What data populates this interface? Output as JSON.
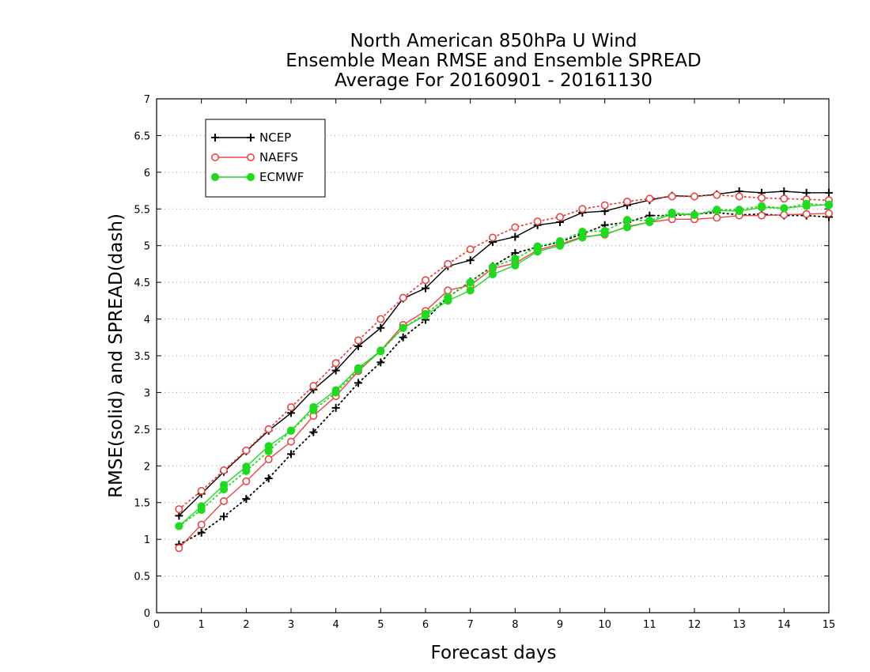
{
  "chart_data": {
    "type": "line",
    "title": [
      "North American 850hPa U Wind",
      "Ensemble Mean RMSE and Ensemble SPREAD",
      "Average For 20160901 - 20161130"
    ],
    "xlabel": "Forecast days",
    "ylabel": "RMSE(solid) and SPREAD(dash)",
    "xlim": [
      0,
      15
    ],
    "ylim": [
      0,
      7
    ],
    "xticks": [
      "0",
      "1",
      "2",
      "3",
      "4",
      "5",
      "6",
      "7",
      "8",
      "9",
      "10",
      "11",
      "12",
      "13",
      "14",
      "15"
    ],
    "yticks": [
      "0",
      "0.5",
      "1",
      "1.5",
      "2",
      "2.5",
      "3",
      "3.5",
      "4",
      "4.5",
      "5",
      "5.5",
      "6",
      "6.5",
      "7"
    ],
    "grid": true,
    "legend_position": "top-left",
    "x": [
      0.5,
      1,
      1.5,
      2,
      2.5,
      3,
      3.5,
      4,
      4.5,
      5,
      5.5,
      6,
      6.5,
      7,
      7.5,
      8,
      8.5,
      9,
      9.5,
      10,
      10.5,
      11,
      11.5,
      12,
      12.5,
      13,
      13.5,
      14,
      14.5,
      15
    ],
    "series": [
      {
        "name": "NCEP",
        "color": "#000000",
        "marker": "plus",
        "style": "solid",
        "values": [
          1.32,
          1.62,
          1.92,
          2.2,
          2.48,
          2.72,
          3.04,
          3.3,
          3.63,
          3.88,
          4.28,
          4.42,
          4.72,
          4.8,
          5.05,
          5.12,
          5.28,
          5.32,
          5.45,
          5.47,
          5.55,
          5.62,
          5.68,
          5.67,
          5.7,
          5.74,
          5.72,
          5.74,
          5.72,
          5.72
        ]
      },
      {
        "name": "NCEP",
        "color": "#000000",
        "marker": "plus",
        "style": "dotted",
        "values": [
          0.93,
          1.09,
          1.31,
          1.55,
          1.83,
          2.16,
          2.46,
          2.79,
          3.13,
          3.41,
          3.75,
          3.99,
          4.3,
          4.51,
          4.72,
          4.9,
          4.98,
          5.05,
          5.16,
          5.28,
          5.32,
          5.41,
          5.41,
          5.43,
          5.45,
          5.42,
          5.43,
          5.41,
          5.41,
          5.39
        ]
      },
      {
        "name": "NAEFS",
        "color": "#e84545",
        "marker": "open-circle",
        "style": "solid",
        "values": [
          0.88,
          1.2,
          1.52,
          1.79,
          2.09,
          2.33,
          2.68,
          2.95,
          3.29,
          3.57,
          3.92,
          4.11,
          4.39,
          4.46,
          4.69,
          4.76,
          4.94,
          5.02,
          5.12,
          5.15,
          5.26,
          5.32,
          5.36,
          5.36,
          5.38,
          5.41,
          5.41,
          5.42,
          5.43,
          5.44
        ]
      },
      {
        "name": "NAEFS",
        "color": "#e84545",
        "marker": "open-circle",
        "style": "dotted",
        "values": [
          1.41,
          1.66,
          1.94,
          2.21,
          2.5,
          2.8,
          3.09,
          3.4,
          3.71,
          4.0,
          4.29,
          4.53,
          4.75,
          4.95,
          5.11,
          5.25,
          5.33,
          5.39,
          5.5,
          5.55,
          5.6,
          5.64,
          5.67,
          5.67,
          5.69,
          5.67,
          5.65,
          5.64,
          5.63,
          5.62
        ]
      },
      {
        "name": "ECMWF",
        "color": "#22d922",
        "marker": "filled-circle",
        "style": "solid",
        "values": [
          1.18,
          1.45,
          1.74,
          1.99,
          2.27,
          2.48,
          2.8,
          3.03,
          3.33,
          3.57,
          3.88,
          4.05,
          4.25,
          4.39,
          4.61,
          4.73,
          4.92,
          5.0,
          5.11,
          5.16,
          5.25,
          5.32,
          5.43,
          5.42,
          5.48,
          5.47,
          5.52,
          5.51,
          5.54,
          5.56
        ]
      },
      {
        "name": "ECMWF",
        "color": "#22d922",
        "marker": "filled-circle",
        "style": "dotted",
        "values": [
          1.18,
          1.4,
          1.68,
          1.93,
          2.2,
          2.48,
          2.76,
          3.0,
          3.31,
          3.56,
          3.88,
          4.07,
          4.3,
          4.5,
          4.71,
          4.82,
          4.99,
          5.06,
          5.19,
          5.2,
          5.35,
          5.34,
          5.45,
          5.42,
          5.49,
          5.49,
          5.54,
          5.51,
          5.57,
          5.55
        ]
      }
    ],
    "legend": [
      {
        "name": "NCEP",
        "color": "#000000",
        "marker": "plus"
      },
      {
        "name": "NAEFS",
        "color": "#e84545",
        "marker": "open-circle"
      },
      {
        "name": "ECMWF",
        "color": "#22d922",
        "marker": "filled-circle"
      }
    ]
  }
}
